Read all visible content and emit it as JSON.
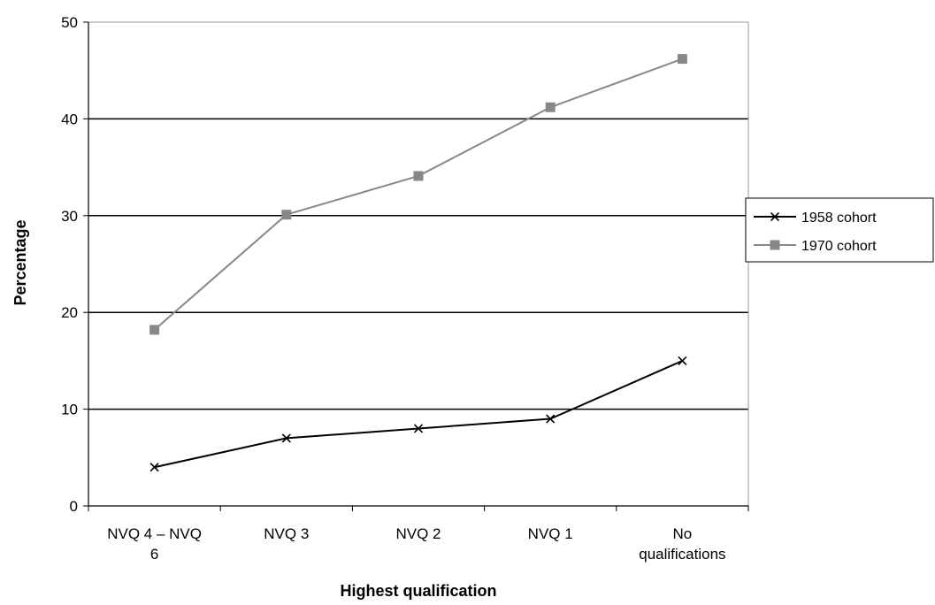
{
  "chart_data": {
    "type": "line",
    "title": "",
    "xlabel": "Highest qualification",
    "ylabel": "Percentage",
    "categories": [
      [
        "NVQ 4 – NVQ",
        "6"
      ],
      [
        "NVQ 3"
      ],
      [
        "NVQ 2"
      ],
      [
        "NVQ 1"
      ],
      [
        "No",
        "qualifications"
      ]
    ],
    "ylim": [
      0,
      50
    ],
    "yticks": [
      0,
      10,
      20,
      30,
      40,
      50
    ],
    "grid": true,
    "legend_position": "right",
    "series": [
      {
        "name": "1958 cohort",
        "values": [
          4,
          7,
          8,
          9,
          15
        ],
        "color": "#000000",
        "marker": "x"
      },
      {
        "name": "1970 cohort",
        "values": [
          18.2,
          30.1,
          34.1,
          41.2,
          46.2
        ],
        "color": "#888888",
        "marker": "square"
      }
    ]
  }
}
